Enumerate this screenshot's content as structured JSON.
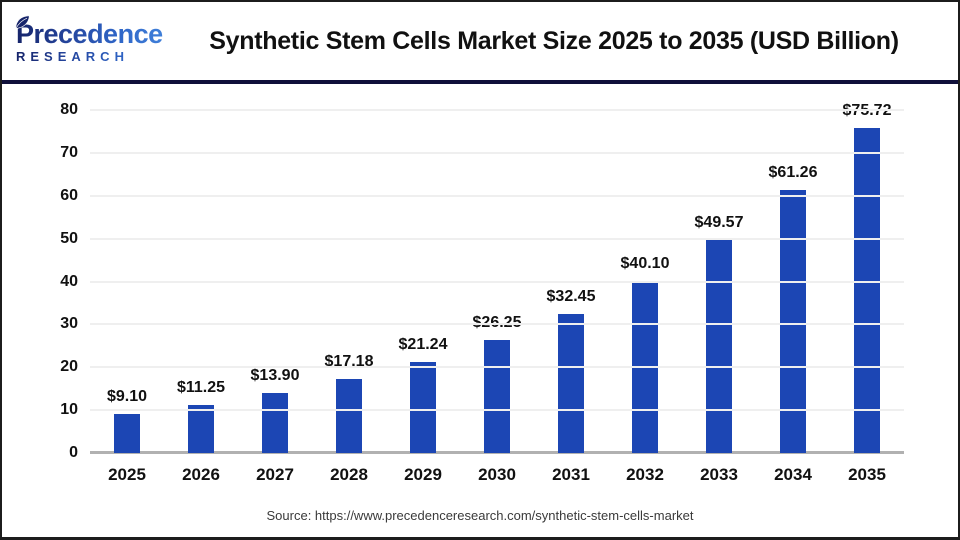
{
  "header": {
    "logo": {
      "line1": "Precedence",
      "line2": "RESEARCH"
    },
    "title": "Synthetic Stem Cells Market Size 2025 to 2035 (USD Billion)"
  },
  "chart_data": {
    "type": "bar",
    "title": "Synthetic Stem Cells Market Size 2025 to 2035 (USD Billion)",
    "categories": [
      "2025",
      "2026",
      "2027",
      "2028",
      "2029",
      "2030",
      "2031",
      "2032",
      "2033",
      "2034",
      "2035"
    ],
    "values": [
      9.1,
      11.25,
      13.9,
      17.18,
      21.24,
      26.25,
      32.45,
      40.1,
      49.57,
      61.26,
      75.72
    ],
    "value_labels": [
      "$9.10",
      "$11.25",
      "$13.90",
      "$17.18",
      "$21.24",
      "$26.25",
      "$32.45",
      "$40.10",
      "$49.57",
      "$61.26",
      "$75.72"
    ],
    "xlabel": "",
    "ylabel": "",
    "ylim": [
      0,
      80
    ],
    "ytick_step": 10,
    "grid": "horizontal",
    "legend_position": "none",
    "bar_color": "#1c46b4",
    "unit": "USD Billion"
  },
  "footer": {
    "source": "Source: https://www.precedenceresearch.com/synthetic-stem-cells-market"
  },
  "colors": {
    "bar": "#1c46b4",
    "separator": "#10103a",
    "gridline": "#efefef",
    "baseline": "#b1b1b1",
    "text": "#111111",
    "logo_dark": "#16246a",
    "logo_light": "#3f7fd9"
  }
}
